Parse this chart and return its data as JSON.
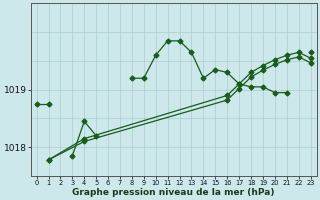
{
  "xlabel": "Graphe pression niveau de la mer (hPa)",
  "bg_color": "#cce8eb",
  "grid_v_color": "#aacccc",
  "grid_h_color": "#aacccc",
  "line_color": "#1a5c1a",
  "ylim": [
    1017.5,
    1020.5
  ],
  "yticks": [
    1018.0,
    1019.0
  ],
  "xlim": [
    -0.5,
    23.5
  ],
  "figsize": [
    3.2,
    2.0
  ],
  "dpi": 100,
  "line_main_x": [
    0,
    1,
    2,
    3,
    4,
    5,
    6,
    7,
    8,
    9,
    10,
    11,
    12,
    13,
    14,
    15,
    16,
    17,
    18,
    19,
    20,
    21,
    22,
    23
  ],
  "line_main_y": [
    1018.75,
    1018.75,
    null,
    1017.85,
    1018.45,
    1018.2,
    null,
    null,
    1019.2,
    1019.2,
    1019.6,
    1019.85,
    1019.85,
    1019.65,
    1019.2,
    1019.35,
    1019.3,
    1019.1,
    1019.05,
    1019.05,
    1018.95,
    1018.95,
    null,
    1019.65
  ],
  "line_rise1_x": [
    1,
    4,
    16,
    17,
    18,
    19,
    20,
    21,
    22,
    23
  ],
  "line_rise1_y": [
    1017.78,
    1018.15,
    1018.9,
    1019.1,
    1019.3,
    1019.42,
    1019.52,
    1019.6,
    1019.65,
    1019.55
  ],
  "line_rise2_x": [
    1,
    4,
    16,
    17,
    18,
    19,
    20,
    21,
    22,
    23
  ],
  "line_rise2_y": [
    1017.78,
    1018.1,
    1018.82,
    1019.02,
    1019.22,
    1019.34,
    1019.44,
    1019.52,
    1019.57,
    1019.47
  ],
  "marker": "D",
  "markersize": 2.5,
  "linewidth": 0.9
}
